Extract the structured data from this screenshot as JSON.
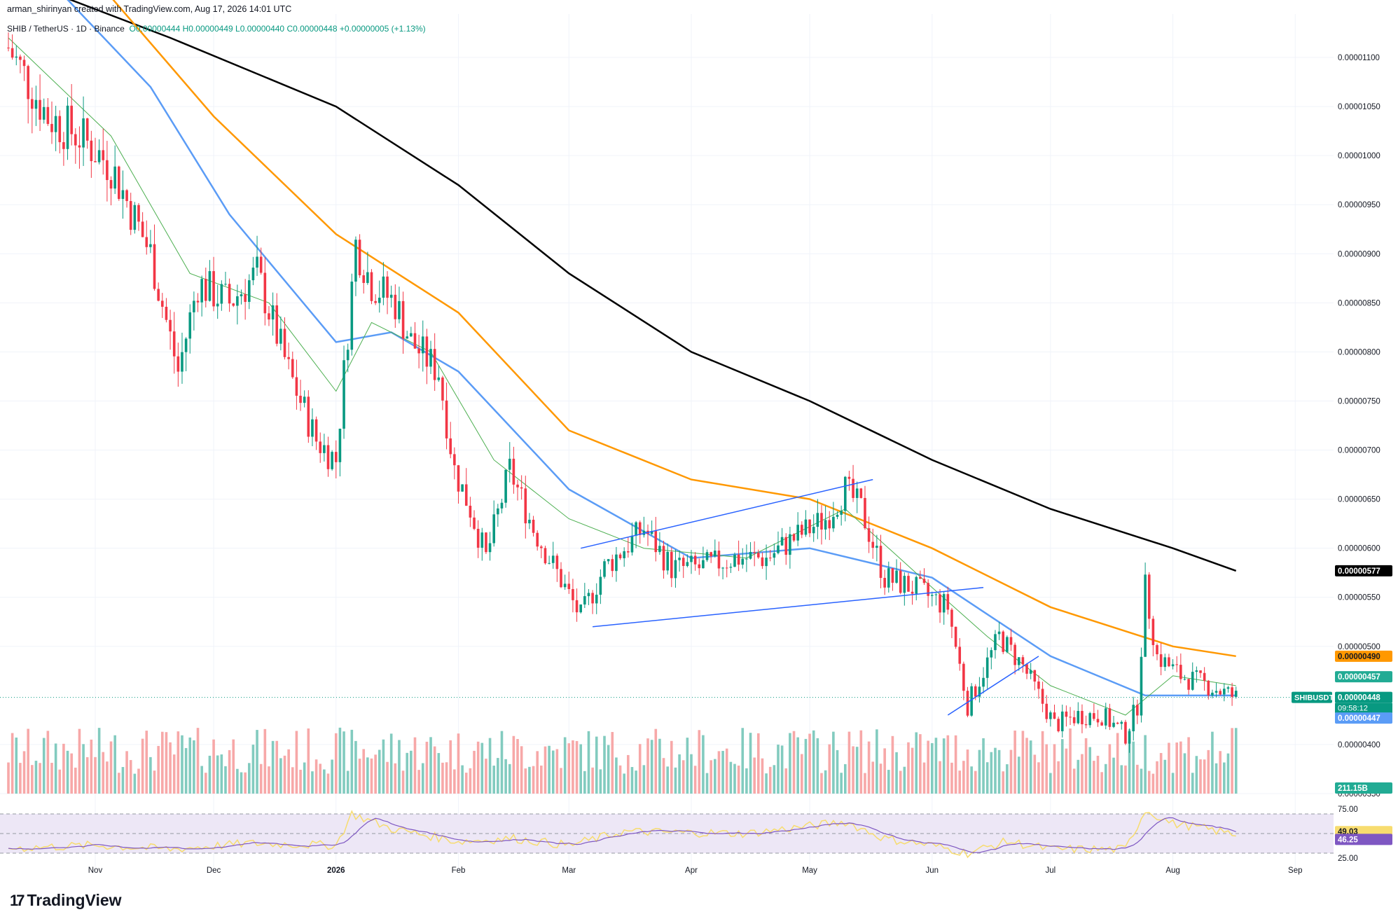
{
  "header": {
    "created_by": "arman_shirinyan created with TradingView.com, Aug 17, 2026 14:01 UTC"
  },
  "legend": {
    "symbol": "SHIB / TetherUS · 1D · Binance",
    "open": "O0.00000444",
    "high": "H0.00000449",
    "low": "L0.00000440",
    "close": "C0.00000448",
    "change": "+0.00000005 (+1.13%)"
  },
  "logo": {
    "text": "TradingView",
    "icon": "tradingview-logo-icon"
  },
  "colors": {
    "up": "#089981",
    "down": "#f23645",
    "up_vol": "#82cbbf",
    "down_vol": "#f7a8a8",
    "ema_black": "#000000",
    "ema_orange": "#ff9800",
    "ema_blue": "#5b9cf6",
    "ema_green": "#4caf50",
    "trendline": "#2962ff",
    "rsi_line": "#7e57c2",
    "rsi_ma": "#f7dc6f",
    "rsi_band": "#ede7f6"
  },
  "chart_data": {
    "type": "candlestick",
    "symbol": "SHIB / TetherUS",
    "interval": "1D",
    "exchange": "Binance",
    "price_axis_ticks": [
      "0.00001100",
      "0.00001050",
      "0.00001000",
      "0.00000950",
      "0.00000900",
      "0.00000850",
      "0.00000800",
      "0.00000750",
      "0.00000700",
      "0.00000650",
      "0.00000600",
      "0.00000550",
      "0.00000500",
      "0.00000400",
      "0.00000350"
    ],
    "price_range": [
      3.5e-06,
      1.13e-05
    ],
    "x_ticks": [
      "Nov",
      "Dec",
      "2026",
      "Feb",
      "Mar",
      "Apr",
      "May",
      "Jun",
      "Jul",
      "Aug",
      "Sep"
    ],
    "x_tick_dates": [
      "2025-11-01",
      "2025-12-01",
      "2026-01-01",
      "2026-02-01",
      "2026-03-01",
      "2026-04-01",
      "2026-05-01",
      "2026-06-01",
      "2026-07-01",
      "2026-08-01",
      "2026-09-01"
    ],
    "date_range": [
      "2025-10-10",
      "2026-09-10"
    ],
    "last_date": "2026-08-17",
    "close_path": [
      [
        "2025-10-10",
        1.11e-05
      ],
      [
        "2025-10-20",
        1.04e-05
      ],
      [
        "2025-10-28",
        1.02e-05
      ],
      [
        "2025-11-05",
        9.9e-06
      ],
      [
        "2025-11-15",
        9e-06
      ],
      [
        "2025-11-22",
        7.8e-06
      ],
      [
        "2025-11-27",
        8.7e-06
      ],
      [
        "2025-12-05",
        8.5e-06
      ],
      [
        "2025-12-12",
        8.8e-06
      ],
      [
        "2025-12-20",
        7.8e-06
      ],
      [
        "2025-12-27",
        7.1e-06
      ],
      [
        "2026-01-01",
        6.9e-06
      ],
      [
        "2026-01-06",
        9.1e-06
      ],
      [
        "2026-01-10",
        8.7e-06
      ],
      [
        "2026-01-16",
        8.5e-06
      ],
      [
        "2026-01-20",
        8.1e-06
      ],
      [
        "2026-01-27",
        7.8e-06
      ],
      [
        "2026-01-31",
        6.8e-06
      ],
      [
        "2026-02-04",
        6.4e-06
      ],
      [
        "2026-02-08",
        5.9e-06
      ],
      [
        "2026-02-14",
        6.8e-06
      ],
      [
        "2026-02-20",
        6.2e-06
      ],
      [
        "2026-02-28",
        5.6e-06
      ],
      [
        "2026-03-04",
        5.3e-06
      ],
      [
        "2026-03-10",
        5.8e-06
      ],
      [
        "2026-03-20",
        6.2e-06
      ],
      [
        "2026-03-27",
        5.8e-06
      ],
      [
        "2026-04-03",
        5.8e-06
      ],
      [
        "2026-04-12",
        5.9e-06
      ],
      [
        "2026-04-20",
        5.9e-06
      ],
      [
        "2026-04-27",
        6.1e-06
      ],
      [
        "2026-05-05",
        6.3e-06
      ],
      [
        "2026-05-10",
        6.6e-06
      ],
      [
        "2026-05-14",
        6.4e-06
      ],
      [
        "2026-05-20",
        5.7e-06
      ],
      [
        "2026-05-27",
        5.6e-06
      ],
      [
        "2026-06-05",
        5.4e-06
      ],
      [
        "2026-06-10",
        4.4e-06
      ],
      [
        "2026-06-18",
        5.1e-06
      ],
      [
        "2026-06-24",
        4.8e-06
      ],
      [
        "2026-07-02",
        4.2e-06
      ],
      [
        "2026-07-08",
        4.3e-06
      ],
      [
        "2026-07-14",
        4.3e-06
      ],
      [
        "2026-07-20",
        4.1e-06
      ],
      [
        "2026-07-23",
        4.4e-06
      ],
      [
        "2026-07-25",
        5.6e-06
      ],
      [
        "2026-07-28",
        4.9e-06
      ],
      [
        "2026-08-03",
        4.7e-06
      ],
      [
        "2026-08-10",
        4.6e-06
      ],
      [
        "2026-08-17",
        4.48e-06
      ]
    ],
    "moving_averages": [
      {
        "color": "#000000",
        "last": "0.00000577",
        "points": [
          [
            "2025-10-25",
            1.16e-05
          ],
          [
            "2025-11-20",
            1.12e-05
          ],
          [
            "2026-01-01",
            1.05e-05
          ],
          [
            "2026-02-01",
            9.7e-06
          ],
          [
            "2026-03-01",
            8.8e-06
          ],
          [
            "2026-04-01",
            8e-06
          ],
          [
            "2026-05-01",
            7.5e-06
          ],
          [
            "2026-06-01",
            6.9e-06
          ],
          [
            "2026-07-01",
            6.4e-06
          ],
          [
            "2026-08-01",
            6e-06
          ],
          [
            "2026-08-17",
            5.77e-06
          ]
        ]
      },
      {
        "color": "#ff9800",
        "last": "0.00000490",
        "points": [
          [
            "2025-11-01",
            1.18e-05
          ],
          [
            "2025-12-01",
            1.04e-05
          ],
          [
            "2026-01-01",
            9.2e-06
          ],
          [
            "2026-02-01",
            8.4e-06
          ],
          [
            "2026-03-01",
            7.2e-06
          ],
          [
            "2026-04-01",
            6.7e-06
          ],
          [
            "2026-05-01",
            6.5e-06
          ],
          [
            "2026-06-01",
            6e-06
          ],
          [
            "2026-07-01",
            5.4e-06
          ],
          [
            "2026-08-01",
            5e-06
          ],
          [
            "2026-08-17",
            4.9e-06
          ]
        ]
      },
      {
        "color": "#5b9cf6",
        "last": "0.00000447",
        "points": [
          [
            "2025-10-20",
            1.18e-05
          ],
          [
            "2025-11-15",
            1.07e-05
          ],
          [
            "2025-12-05",
            9.4e-06
          ],
          [
            "2026-01-01",
            8.1e-06
          ],
          [
            "2026-01-15",
            8.2e-06
          ],
          [
            "2026-02-01",
            7.8e-06
          ],
          [
            "2026-03-01",
            6.6e-06
          ],
          [
            "2026-04-01",
            5.9e-06
          ],
          [
            "2026-05-01",
            6e-06
          ],
          [
            "2026-06-01",
            5.7e-06
          ],
          [
            "2026-07-01",
            4.9e-06
          ],
          [
            "2026-07-25",
            4.5e-06
          ],
          [
            "2026-08-17",
            4.5e-06
          ]
        ]
      },
      {
        "color": "#4caf50",
        "last": "0.00000457",
        "points": [
          [
            "2025-10-10",
            1.12e-05
          ],
          [
            "2025-11-05",
            1.02e-05
          ],
          [
            "2025-11-25",
            8.8e-06
          ],
          [
            "2025-12-15",
            8.5e-06
          ],
          [
            "2026-01-01",
            7.6e-06
          ],
          [
            "2026-01-10",
            8.3e-06
          ],
          [
            "2026-01-25",
            8e-06
          ],
          [
            "2026-02-10",
            6.9e-06
          ],
          [
            "2026-03-01",
            6.3e-06
          ],
          [
            "2026-03-20",
            6e-06
          ],
          [
            "2026-04-15",
            5.9e-06
          ],
          [
            "2026-05-10",
            6.4e-06
          ],
          [
            "2026-06-01",
            5.6e-06
          ],
          [
            "2026-06-15",
            5.1e-06
          ],
          [
            "2026-07-01",
            4.6e-06
          ],
          [
            "2026-07-20",
            4.3e-06
          ],
          [
            "2026-08-01",
            4.7e-06
          ],
          [
            "2026-08-17",
            4.6e-06
          ]
        ]
      }
    ],
    "trendlines": [
      {
        "from": [
          "2026-03-04",
          6e-06
        ],
        "to": [
          "2026-05-17",
          6.7e-06
        ]
      },
      {
        "from": [
          "2026-03-07",
          5.2e-06
        ],
        "to": [
          "2026-06-14",
          5.6e-06
        ]
      },
      {
        "from": [
          "2026-06-05",
          4.3e-06
        ],
        "to": [
          "2026-06-28",
          4.9e-06
        ]
      }
    ],
    "price_labels": [
      {
        "text": "0.00000577",
        "bg": "#000000",
        "fg": "#ffffff",
        "value": 5.77e-06
      },
      {
        "text": "0.00000490",
        "bg": "#ff9800",
        "fg": "#131722",
        "value": 4.9e-06
      },
      {
        "text": "0.00000457",
        "bg": "#22ab94",
        "fg": "#ffffff",
        "value": 4.57e-06
      },
      {
        "text": "0.00000448",
        "bg": "#089981",
        "fg": "#ffffff",
        "value": 4.48e-06,
        "countdown": "09:58:12"
      },
      {
        "text": "0.00000447",
        "bg": "#5b9cf6",
        "fg": "#ffffff",
        "value": 4.47e-06
      }
    ],
    "symbol_tag": "SHIBUSDT",
    "last_price_line": 4.48e-06,
    "volume": {
      "last": "211.15B",
      "volume_cap": 330000000000.0
    },
    "rsi": {
      "ticks": [
        "75.00",
        "25.00"
      ],
      "levels": [
        70,
        50,
        30
      ],
      "range": [
        20,
        80
      ],
      "rsi_value": "49.03",
      "rsi_ma_value": "46.25",
      "rsi_path": [
        [
          "2025-10-10",
          35
        ],
        [
          "2025-11-01",
          38
        ],
        [
          "2025-11-20",
          34
        ],
        [
          "2025-12-10",
          40
        ],
        [
          "2026-01-01",
          38
        ],
        [
          "2026-01-05",
          70
        ],
        [
          "2026-01-15",
          55
        ],
        [
          "2026-02-01",
          42
        ],
        [
          "2026-02-15",
          45
        ],
        [
          "2026-03-01",
          38
        ],
        [
          "2026-03-15",
          52
        ],
        [
          "2026-04-15",
          50
        ],
        [
          "2026-05-10",
          62
        ],
        [
          "2026-05-20",
          45
        ],
        [
          "2026-06-01",
          38
        ],
        [
          "2026-06-10",
          30
        ],
        [
          "2026-06-20",
          42
        ],
        [
          "2026-07-01",
          34
        ],
        [
          "2026-07-20",
          34
        ],
        [
          "2026-07-25",
          74
        ],
        [
          "2026-08-01",
          60
        ],
        [
          "2026-08-05",
          58
        ],
        [
          "2026-08-17",
          49
        ]
      ]
    }
  }
}
